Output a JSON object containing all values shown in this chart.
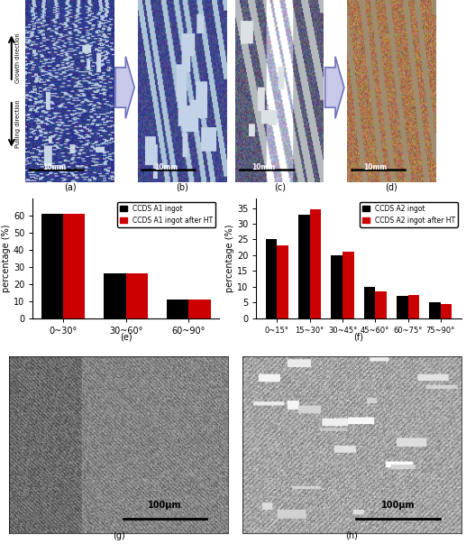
{
  "chart_e": {
    "categories": [
      "0~30°",
      "30~60°",
      "60~90°"
    ],
    "black_values": [
      61,
      26,
      11
    ],
    "red_values": [
      61,
      26.5,
      11
    ],
    "legend1": "CCDS A1 ingot",
    "legend2": "CCDS A1 ingot after HT",
    "ylabel": "percentage (%)",
    "ylim": [
      0,
      70
    ],
    "yticks": [
      0,
      10,
      20,
      30,
      40,
      50,
      60
    ]
  },
  "chart_f": {
    "categories": [
      "0~15°",
      "15~30°",
      "30~45°",
      "45~60°",
      "60~75°",
      "75~90°"
    ],
    "black_values": [
      25,
      33,
      20,
      10,
      7,
      5
    ],
    "red_values": [
      23,
      34.5,
      21,
      8.5,
      7.5,
      4.5
    ],
    "legend1": "CCDS A2 ingot",
    "legend2": "CCDS A2 ingot after HT",
    "ylabel": "percentage (%)",
    "ylim": [
      0,
      38
    ],
    "yticks": [
      0,
      5,
      10,
      15,
      20,
      25,
      30,
      35
    ]
  },
  "colors": {
    "black": "#000000",
    "red": "#cc0000",
    "arrow_face": "#c8c8e8",
    "arrow_edge": "#7070c0"
  },
  "bar_width": 0.35
}
